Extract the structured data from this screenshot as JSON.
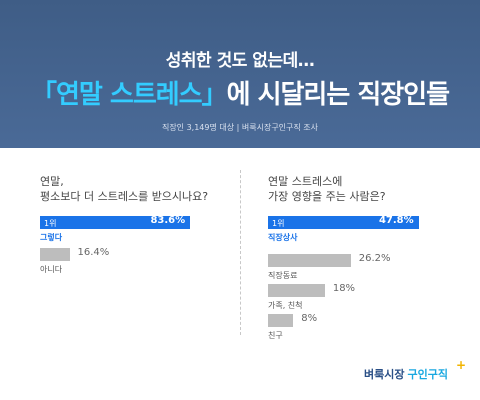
{
  "header": {
    "sub_headline": "성취한 것도 없는데…",
    "headline_open": "「",
    "headline_highlight": "연말 스트레스",
    "headline_close": "」",
    "headline_rest": "에 시달리는 직장인들",
    "survey_note": "직장인 3,149명 대상  |  벼룩시장구인구직 조사"
  },
  "chart_data": [
    {
      "type": "bar",
      "question": "연말,\n평소보다 더 스트레스를 받으시나요?",
      "categories": [
        "그렇다",
        "아니다"
      ],
      "values": [
        83.6,
        16.4
      ],
      "unit": "%",
      "highlight_rank_label": "1위",
      "value_labels": [
        "83.6%",
        "16.4%"
      ],
      "xlim": [
        0,
        100
      ],
      "colors": {
        "top": "#1a73e8",
        "other": "#bdbdbd"
      }
    },
    {
      "type": "bar",
      "question": "연말 스트레스에\n가장 영향을 주는 사람은?",
      "categories": [
        "직장상사",
        "직장동료",
        "가족, 친척",
        "친구"
      ],
      "values": [
        47.8,
        26.2,
        18,
        8
      ],
      "unit": "%",
      "highlight_rank_label": "1위",
      "value_labels": [
        "47.8%",
        "26.2%",
        "18%",
        "8%"
      ],
      "xlim": [
        0,
        57
      ],
      "colors": {
        "top": "#1a73e8",
        "other": "#bdbdbd"
      }
    }
  ],
  "logo": {
    "part_a": "벼룩시장",
    "part_b": "구인구직",
    "plus": "+"
  }
}
